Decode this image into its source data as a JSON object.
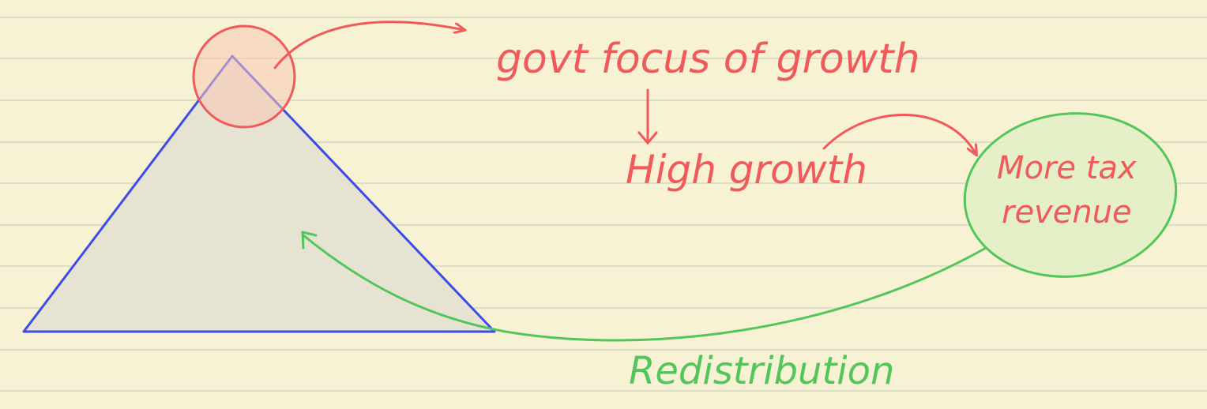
{
  "notes": {
    "govt_focus": "govt focus of growth",
    "high_growth": "High growth",
    "more_tax_line1": "More tax",
    "more_tax_line2": "revenue",
    "redistribution": "Redistribution"
  },
  "colors": {
    "paper": "#f7f2d4",
    "ruled_line": "#dcdcc8",
    "red_ink": "#f05a5a",
    "green_ink": "#52c65a",
    "blue_ink": "#3d4bea",
    "triangle_fill": "#e5e2d3",
    "apex_fill": "#f7d4bf",
    "ellipse_fill": "#e2efc8"
  }
}
